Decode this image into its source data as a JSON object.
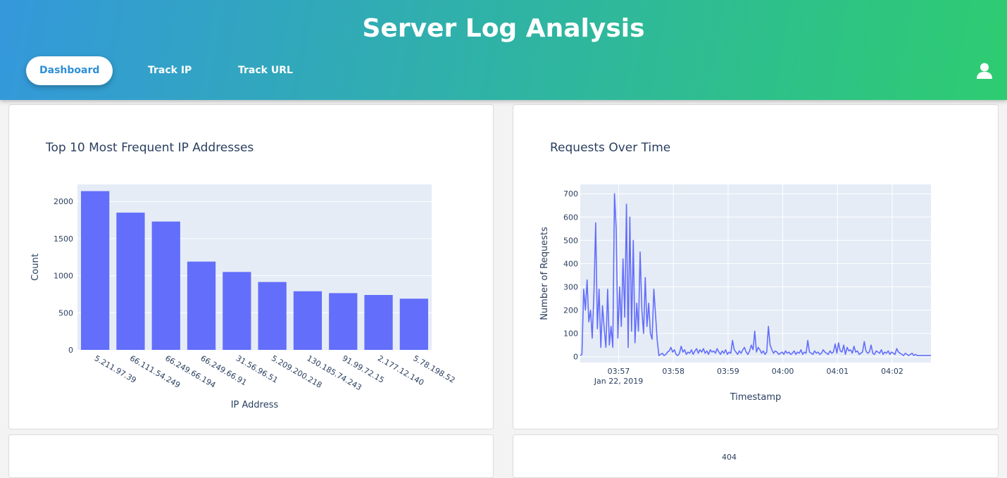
{
  "header": {
    "title": "Server Log Analysis",
    "nav": [
      {
        "label": "Dashboard",
        "active": true
      },
      {
        "label": "Track IP",
        "active": false
      },
      {
        "label": "Track URL",
        "active": false
      }
    ],
    "user_icon": "user-icon"
  },
  "colors": {
    "bar": "#636efa",
    "plot_bg": "#e5ecf6",
    "axis_text": "#2a3f5f"
  },
  "chart_data": [
    {
      "type": "bar",
      "title": "Top 10 Most Frequent IP Addresses",
      "xlabel": "IP Address",
      "ylabel": "Count",
      "categories": [
        "5.211.97.39",
        "66.111.54.249",
        "66.249.66.194",
        "66.249.66.91",
        "31.56.96.51",
        "5.209.200.218",
        "130.185.74.243",
        "91.99.72.15",
        "2.177.12.140",
        "5.78.198.52"
      ],
      "values": [
        2140,
        1850,
        1730,
        1190,
        1050,
        915,
        790,
        765,
        740,
        690
      ],
      "ylim": [
        0,
        2230
      ],
      "yticks": [
        0,
        500,
        1000,
        1500,
        2000
      ],
      "grid": true
    },
    {
      "type": "line",
      "title": "Requests Over Time",
      "xlabel": "Timestamp",
      "ylabel": "Number of Requests",
      "date_label": "Jan 22, 2019",
      "xticks": [
        "03:57",
        "03:58",
        "03:59",
        "04:00",
        "04:01",
        "04:02"
      ],
      "ylim": [
        -25,
        740
      ],
      "yticks": [
        0,
        100,
        200,
        300,
        400,
        500,
        600,
        700
      ],
      "grid": true,
      "values": [
        5,
        10,
        290,
        200,
        330,
        150,
        200,
        80,
        270,
        575,
        120,
        290,
        40,
        220,
        120,
        40,
        290,
        50,
        130,
        40,
        700,
        550,
        80,
        300,
        130,
        420,
        170,
        655,
        40,
        600,
        110,
        500,
        60,
        230,
        110,
        450,
        200,
        100,
        340,
        130,
        230,
        100,
        75,
        290,
        180,
        70,
        5,
        10,
        15,
        5,
        10,
        20,
        25,
        40,
        20,
        30,
        10,
        5,
        15,
        45,
        20,
        30,
        10,
        20,
        15,
        30,
        10,
        25,
        35,
        15,
        30,
        20,
        35,
        15,
        25,
        10,
        30,
        20,
        25,
        15,
        35,
        20,
        10,
        25,
        15,
        30,
        10,
        20,
        15,
        70,
        30,
        20,
        10,
        25,
        15,
        30,
        40,
        20,
        10,
        25,
        50,
        30,
        110,
        20,
        40,
        30,
        15,
        25,
        10,
        20,
        130,
        50,
        30,
        15,
        25,
        20,
        10,
        15,
        20,
        10,
        25,
        15,
        20,
        10,
        15,
        25,
        10,
        20,
        15,
        30,
        10,
        20,
        15,
        70,
        20,
        15,
        10,
        25,
        15,
        20,
        10,
        15,
        30,
        20,
        15,
        10,
        25,
        15,
        20,
        55,
        15,
        60,
        25,
        20,
        50,
        10,
        40,
        25,
        30,
        15,
        45,
        20,
        25,
        10,
        15,
        20,
        65,
        25,
        15,
        20,
        50,
        15,
        10,
        25,
        20,
        15,
        30,
        10,
        20,
        15,
        25,
        10,
        20,
        15,
        10,
        35,
        20,
        15,
        10,
        5,
        15,
        10,
        5,
        10,
        15,
        5,
        10,
        5,
        5,
        5,
        5,
        5,
        5,
        5,
        5,
        5
      ]
    }
  ],
  "lower_right_partial_label": "404"
}
